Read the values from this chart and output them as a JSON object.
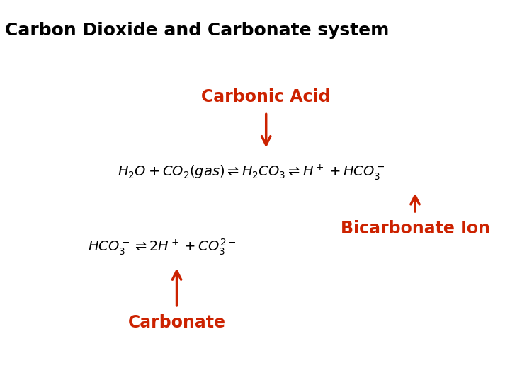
{
  "title": "Carbon Dioxide and Carbonate system",
  "title_color": "#000000",
  "title_fontsize": 18,
  "title_fontweight": "bold",
  "bg_color": "#ffffff",
  "label_color": "#cc2200",
  "label_fontsize": 17,
  "label_fontweight": "bold",
  "eq_color": "#000000",
  "carbonic_acid_label": "Carbonic Acid",
  "bicarbonate_label": "Bicarbonate Ion",
  "carbonate_label": "Carbonate",
  "eq1_text": "$H_2O + CO_2(gas) \\rightleftharpoons H_2CO_3 \\rightleftharpoons H^+ + HCO_3^-$",
  "eq2_text": "$HCO_3^- \\rightleftharpoons 2H^+ + CO_3^{2-}$",
  "arrow_color": "#cc2200"
}
